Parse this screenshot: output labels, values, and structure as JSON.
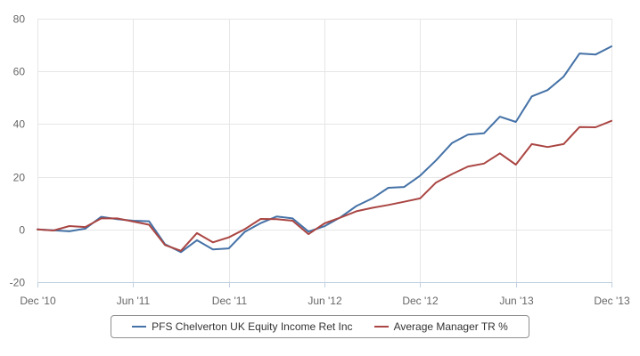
{
  "chart_data": {
    "type": "line",
    "title": "",
    "xlabel": "",
    "ylabel": "",
    "ylim": [
      -20,
      80
    ],
    "yticks": [
      -20,
      0,
      20,
      40,
      60,
      80
    ],
    "xlim": [
      "2010-12",
      "2013-12"
    ],
    "xticks": [
      {
        "at": "2010-12",
        "label": "Dec '10"
      },
      {
        "at": "2011-06",
        "label": "Jun '11"
      },
      {
        "at": "2011-12",
        "label": "Dec '11"
      },
      {
        "at": "2012-06",
        "label": "Jun '12"
      },
      {
        "at": "2012-12",
        "label": "Dec '12"
      },
      {
        "at": "2013-06",
        "label": "Jun '13"
      },
      {
        "at": "2013-12",
        "label": "Dec '13"
      }
    ],
    "grid": true,
    "legend_position": "bottom",
    "x": [
      "2010-12",
      "2011-01",
      "2011-02",
      "2011-03",
      "2011-04",
      "2011-05",
      "2011-06",
      "2011-07",
      "2011-08",
      "2011-09",
      "2011-10",
      "2011-11",
      "2011-12",
      "2012-01",
      "2012-02",
      "2012-03",
      "2012-04",
      "2012-05",
      "2012-06",
      "2012-07",
      "2012-08",
      "2012-09",
      "2012-10",
      "2012-11",
      "2012-12",
      "2013-01",
      "2013-02",
      "2013-03",
      "2013-04",
      "2013-05",
      "2013-06",
      "2013-07",
      "2013-08",
      "2013-09",
      "2013-10",
      "2013-11",
      "2013-12"
    ],
    "series": [
      {
        "name": "PFS Chelverton UK Equity Income Ret Inc",
        "color": "#4572a7",
        "values": [
          0,
          -0.3,
          -0.7,
          0.3,
          4.8,
          3.9,
          3.3,
          3.1,
          -5.6,
          -8.6,
          -4.1,
          -7.6,
          -7.2,
          -0.9,
          2.4,
          4.9,
          4.2,
          -0.8,
          1.2,
          4.6,
          8.9,
          11.8,
          15.8,
          16.1,
          20.4,
          26.2,
          32.8,
          36.0,
          36.5,
          42.8,
          40.8,
          50.5,
          52.9,
          58.0,
          66.8,
          66.4,
          69.5
        ]
      },
      {
        "name": "Average Manager TR %",
        "color": "#aa4643",
        "values": [
          0,
          -0.4,
          1.3,
          0.9,
          4.2,
          4.2,
          3.0,
          1.8,
          -5.9,
          -8.1,
          -1.4,
          -4.9,
          -3.0,
          0.1,
          4.0,
          3.9,
          3.3,
          -1.8,
          2.3,
          4.5,
          6.9,
          8.2,
          9.3,
          10.5,
          11.8,
          17.8,
          21.0,
          23.9,
          25.0,
          28.9,
          24.6,
          32.4,
          31.3,
          32.4,
          38.9,
          38.8,
          41.2
        ]
      }
    ]
  }
}
